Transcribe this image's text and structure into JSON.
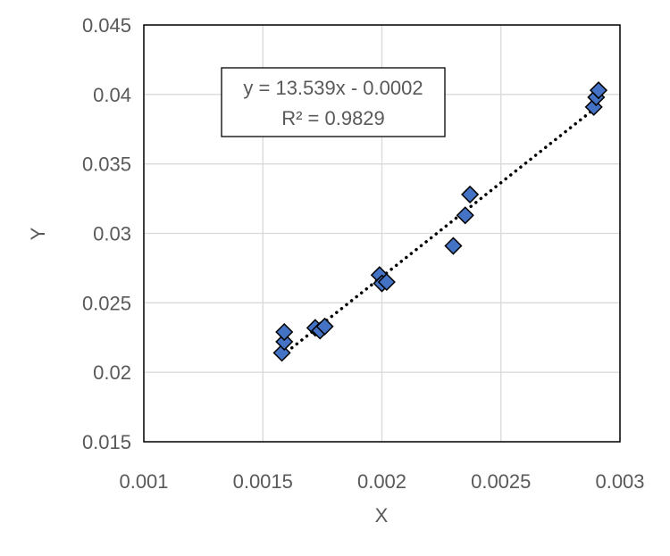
{
  "chart_data": {
    "type": "scatter",
    "xlabel": "X",
    "ylabel": "Y",
    "xlim": [
      0.001,
      0.003
    ],
    "ylim": [
      0.015,
      0.045
    ],
    "x_ticks": [
      "0.001",
      "0.0015",
      "0.002",
      "0.0025",
      "0.003"
    ],
    "y_ticks": [
      "0.015",
      "0.02",
      "0.025",
      "0.03",
      "0.035",
      "0.04",
      "0.045"
    ],
    "grid": true,
    "trendline": {
      "type": "linear",
      "equation": "y = 13.539x - 0.0002",
      "r_squared": "R² = 0.9829",
      "slope": 13.539,
      "intercept": -0.0002
    },
    "points": [
      {
        "x": 0.00158,
        "y": 0.0214
      },
      {
        "x": 0.00159,
        "y": 0.0222
      },
      {
        "x": 0.00159,
        "y": 0.0229
      },
      {
        "x": 0.00172,
        "y": 0.0232
      },
      {
        "x": 0.00174,
        "y": 0.023
      },
      {
        "x": 0.00176,
        "y": 0.0233
      },
      {
        "x": 0.00199,
        "y": 0.027
      },
      {
        "x": 0.002,
        "y": 0.0264
      },
      {
        "x": 0.00202,
        "y": 0.0265
      },
      {
        "x": 0.0023,
        "y": 0.0291
      },
      {
        "x": 0.00235,
        "y": 0.0313
      },
      {
        "x": 0.00237,
        "y": 0.0328
      },
      {
        "x": 0.00289,
        "y": 0.0391
      },
      {
        "x": 0.0029,
        "y": 0.0398
      },
      {
        "x": 0.00291,
        "y": 0.0403
      }
    ],
    "marker": {
      "shape": "diamond",
      "fill": "#4472C4",
      "stroke": "#000000"
    },
    "colors": {
      "grid": "#d9d9d9",
      "axis": "#000000",
      "trendline": "#000000",
      "text": "#595959"
    }
  }
}
